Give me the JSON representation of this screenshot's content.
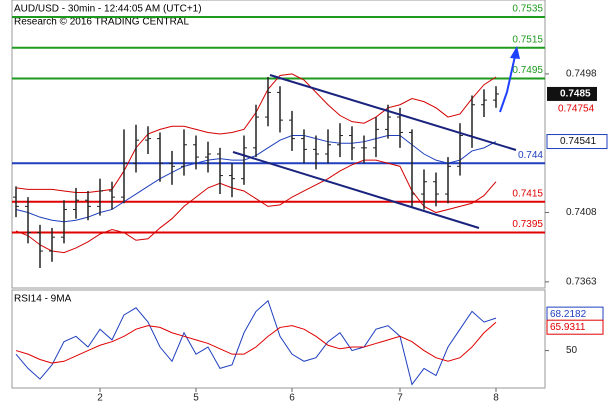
{
  "chart_data": [
    {
      "type": "ohlc",
      "title": "AUD/USD - 30min - 12:44:05 AM (UTC+1)",
      "subtitle": "Research © 2016 TRADING CENTRAL",
      "categories": [
        null,
        null,
        null,
        null,
        null,
        null,
        null,
        "2",
        null,
        null,
        null,
        null,
        null,
        null,
        null,
        "5",
        null,
        null,
        null,
        null,
        null,
        null,
        null,
        "6",
        null,
        null,
        null,
        null,
        null,
        null,
        null,
        null,
        "7",
        null,
        null,
        null,
        null,
        null,
        null,
        null,
        "8"
      ],
      "open": [
        0.7418,
        0.7412,
        0.7395,
        0.7383,
        0.7392,
        0.741,
        0.7416,
        0.7412,
        0.7422,
        0.7418,
        0.744,
        0.7455,
        0.7456,
        0.744,
        0.7438,
        0.7452,
        0.7444,
        0.7446,
        0.7432,
        0.743,
        0.745,
        0.747,
        0.7486,
        0.7468,
        0.7456,
        0.7449,
        0.7446,
        0.7452,
        0.7458,
        0.745,
        0.745,
        0.7462,
        0.747,
        0.746,
        0.742,
        0.7428,
        0.742,
        0.7438,
        0.7458,
        0.7478,
        0.7481
      ],
      "high": [
        0.7425,
        0.7418,
        0.74,
        0.7398,
        0.7416,
        0.7424,
        0.7422,
        0.743,
        0.7428,
        0.7462,
        0.7465,
        0.7464,
        0.746,
        0.7448,
        0.7462,
        0.7458,
        0.7454,
        0.745,
        0.744,
        0.7458,
        0.7478,
        0.7496,
        0.749,
        0.7474,
        0.7462,
        0.7458,
        0.7462,
        0.7466,
        0.7464,
        0.7458,
        0.747,
        0.7478,
        0.7476,
        0.7462,
        0.7436,
        0.7434,
        0.7444,
        0.7466,
        0.7484,
        0.7488,
        0.749
      ],
      "low": [
        0.7405,
        0.7388,
        0.7372,
        0.7376,
        0.7388,
        0.7404,
        0.7403,
        0.7406,
        0.741,
        0.7414,
        0.7434,
        0.7446,
        0.7428,
        0.7426,
        0.7432,
        0.7436,
        0.7434,
        0.742,
        0.7418,
        0.7426,
        0.7444,
        0.7464,
        0.746,
        0.7448,
        0.744,
        0.7436,
        0.744,
        0.7444,
        0.7442,
        0.744,
        0.7444,
        0.7456,
        0.745,
        0.7412,
        0.741,
        0.7412,
        0.7414,
        0.7432,
        0.745,
        0.747,
        0.7476
      ],
      "close": [
        0.7412,
        0.7395,
        0.7383,
        0.7392,
        0.741,
        0.7416,
        0.7412,
        0.7422,
        0.7418,
        0.744,
        0.7455,
        0.7456,
        0.744,
        0.7438,
        0.7452,
        0.7444,
        0.7446,
        0.7432,
        0.743,
        0.745,
        0.747,
        0.7486,
        0.7468,
        0.7456,
        0.7449,
        0.7446,
        0.7452,
        0.7458,
        0.745,
        0.745,
        0.7462,
        0.747,
        0.746,
        0.742,
        0.7428,
        0.742,
        0.7438,
        0.7458,
        0.7478,
        0.7481,
        0.7485
      ],
      "bar_color": "#222222",
      "bands": {
        "band_color": "#d40000",
        "middle_color": "#1f3fbf",
        "upper": [
          0.7424,
          0.7423,
          0.7423,
          0.7423,
          0.7422,
          0.7421,
          0.7421,
          0.7422,
          0.7423,
          0.7435,
          0.745,
          0.7459,
          0.7462,
          0.7464,
          0.7464,
          0.7462,
          0.746,
          0.7459,
          0.746,
          0.7462,
          0.7473,
          0.7488,
          0.7497,
          0.7498,
          0.7494,
          0.7486,
          0.7478,
          0.7471,
          0.7467,
          0.7466,
          0.747,
          0.7476,
          0.7478,
          0.7482,
          0.748,
          0.7476,
          0.747,
          0.7472,
          0.7482,
          0.7491,
          0.7496
        ],
        "middle": [
          0.741,
          0.7408,
          0.7405,
          0.7403,
          0.7402,
          0.7403,
          0.7405,
          0.7408,
          0.741,
          0.7415,
          0.742,
          0.7425,
          0.743,
          0.7434,
          0.7438,
          0.744,
          0.7442,
          0.7443,
          0.7442,
          0.7442,
          0.7445,
          0.745,
          0.7455,
          0.7458,
          0.7458,
          0.7456,
          0.7454,
          0.7453,
          0.7453,
          0.7454,
          0.7456,
          0.7458,
          0.7458,
          0.7452,
          0.7446,
          0.7442,
          0.744,
          0.7442,
          0.7448,
          0.745,
          0.74541
        ],
        "lower": [
          0.7396,
          0.7393,
          0.7387,
          0.7383,
          0.7382,
          0.7385,
          0.7389,
          0.7394,
          0.7397,
          0.7395,
          0.739,
          0.7391,
          0.7398,
          0.7404,
          0.7412,
          0.7418,
          0.7424,
          0.7427,
          0.7424,
          0.7422,
          0.7417,
          0.7412,
          0.7413,
          0.7418,
          0.7422,
          0.7426,
          0.743,
          0.7435,
          0.7439,
          0.7442,
          0.7442,
          0.744,
          0.7438,
          0.7422,
          0.7412,
          0.7408,
          0.741,
          0.7412,
          0.7414,
          0.7419,
          0.7428
        ]
      },
      "levels": [
        {
          "value": 0.7535,
          "color": "#1e9a1e"
        },
        {
          "value": 0.7515,
          "color": "#1e9a1e"
        },
        {
          "value": 0.7495,
          "color": "#1e9a1e"
        },
        {
          "value": 0.744,
          "color": "#1f3fbf"
        },
        {
          "value": 0.7415,
          "color": "#e00000"
        },
        {
          "value": 0.7395,
          "color": "#e00000"
        }
      ],
      "price_labels": [
        {
          "value": 0.74754,
          "color": "#e00000"
        }
      ],
      "ylim": [
        0.7359,
        0.7546
      ],
      "yticks": [
        0.7498,
        0.7408,
        0.7363
      ]
    },
    {
      "type": "line",
      "title": "RSI14 - 9MA",
      "series": [
        {
          "color": "#1f3fbf",
          "values": [
            48,
            40,
            34,
            42,
            55,
            58,
            52,
            62,
            56,
            70,
            74,
            66,
            52,
            44,
            60,
            48,
            52,
            40,
            42,
            60,
            72,
            78,
            58,
            48,
            44,
            46,
            55,
            60,
            50,
            52,
            62,
            64,
            58,
            31,
            40,
            36,
            52,
            62,
            72,
            66,
            68.2182
          ]
        },
        {
          "color": "#e00000",
          "values": [
            50,
            48,
            45,
            43,
            44,
            47,
            50,
            53,
            55,
            58,
            62,
            64,
            63,
            60,
            58,
            56,
            54,
            51,
            48,
            48,
            52,
            58,
            63,
            64,
            62,
            58,
            53,
            51,
            52,
            52,
            54,
            56,
            58,
            55,
            50,
            46,
            44,
            46,
            52,
            60,
            65.9311
          ]
        }
      ],
      "ylim": [
        29,
        84
      ],
      "yticks": [
        50
      ]
    }
  ]
}
